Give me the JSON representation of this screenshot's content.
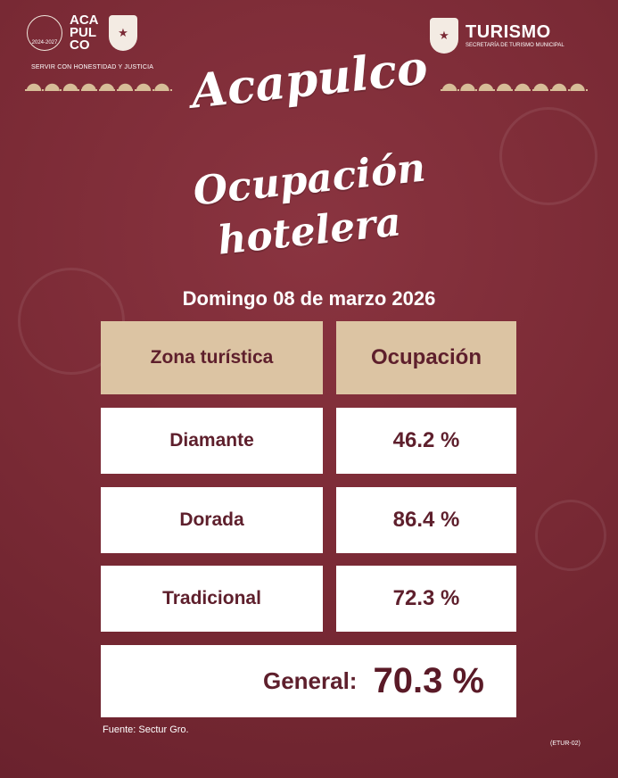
{
  "header": {
    "left_logo_text": "ACAPULCO",
    "seal_years": "2024-2027",
    "motto": "SERVIR CON HONESTIDAD Y JUSTICIA",
    "right_title": "TURISMO",
    "right_subtitle": "SECRETARÍA DE TURISMO MUNICIPAL"
  },
  "title": {
    "brand": "Acapulco",
    "line1": "Ocupación",
    "line2": "hotelera"
  },
  "date": "Domingo 08 de marzo 2026",
  "table": {
    "headers": [
      "Zona turística",
      "Ocupación"
    ],
    "rows": [
      {
        "zone": "Diamante",
        "occupancy": "46.2 %"
      },
      {
        "zone": "Dorada",
        "occupancy": "86.4 %"
      },
      {
        "zone": "Tradicional",
        "occupancy": "72.3 %"
      }
    ],
    "general_label": "General:",
    "general_value": "70.3 %"
  },
  "source": "Fuente: Sectur Gro.",
  "code": "(ETUR-02)",
  "colors": {
    "background": "#7b2a36",
    "header_cell": "#dcc4a3",
    "text_dark": "#5e1f2c"
  }
}
